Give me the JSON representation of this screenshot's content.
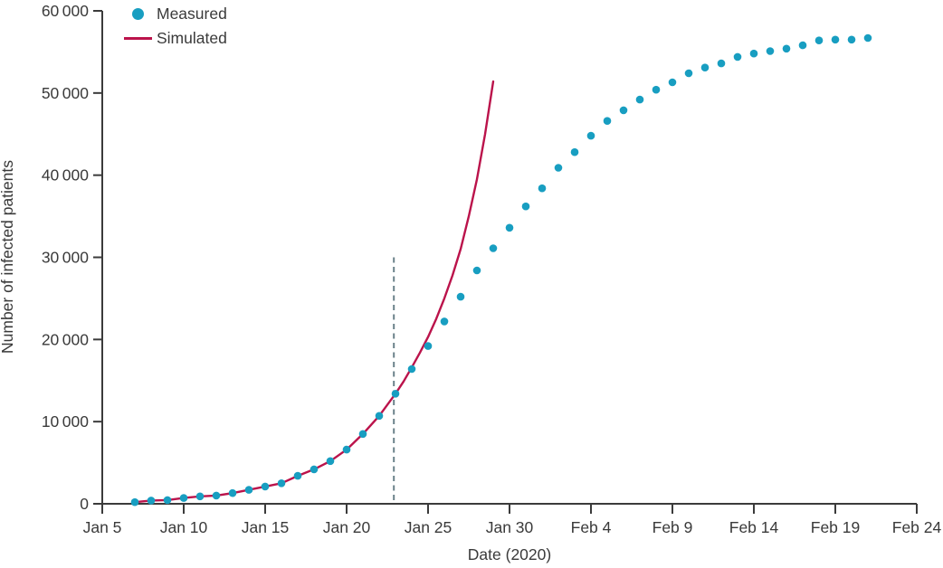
{
  "chart_data": {
    "type": "scatter",
    "title": "",
    "xlabel": "Date (2020)",
    "ylabel": "Number of infected patients",
    "ylim": [
      0,
      60000
    ],
    "x_range_days": [
      0,
      50
    ],
    "grid": false,
    "legend_position": "top-left-inside",
    "y_ticks": [
      0,
      10000,
      20000,
      30000,
      40000,
      50000,
      60000
    ],
    "y_tick_labels": [
      "0",
      "10 000",
      "20 000",
      "30 000",
      "40 000",
      "50 000",
      "60 000"
    ],
    "x_ticks": [
      {
        "day": 0,
        "label": "Jan 5"
      },
      {
        "day": 5,
        "label": "Jan 10"
      },
      {
        "day": 10,
        "label": "Jan 15"
      },
      {
        "day": 15,
        "label": "Jan 20"
      },
      {
        "day": 20,
        "label": "Jan 25"
      },
      {
        "day": 25,
        "label": "Jan 30"
      },
      {
        "day": 30,
        "label": "Feb 4"
      },
      {
        "day": 35,
        "label": "Feb 9"
      },
      {
        "day": 40,
        "label": "Feb 14"
      },
      {
        "day": 45,
        "label": "Feb 19"
      },
      {
        "day": 50,
        "label": "Feb 24"
      }
    ],
    "legend": [
      {
        "label": "Measured",
        "marker": "dot",
        "color": "#189ec1"
      },
      {
        "label": "Simulated",
        "marker": "line",
        "color": "#bb134b"
      }
    ],
    "vline": {
      "date": "Jan 23",
      "day": 17.9,
      "from": 0,
      "to": 30000,
      "style": "dashed",
      "color": "#6b828a"
    },
    "series": [
      {
        "name": "Measured",
        "type": "scatter",
        "color": "#189ec1",
        "marker_radius": 4.3,
        "points": [
          {
            "date": "Jan 7",
            "day": 2,
            "value": 200
          },
          {
            "date": "Jan 8",
            "day": 3,
            "value": 400
          },
          {
            "date": "Jan 9",
            "day": 4,
            "value": 450
          },
          {
            "date": "Jan 10",
            "day": 5,
            "value": 700
          },
          {
            "date": "Jan 11",
            "day": 6,
            "value": 900
          },
          {
            "date": "Jan 12",
            "day": 7,
            "value": 1000
          },
          {
            "date": "Jan 13",
            "day": 8,
            "value": 1300
          },
          {
            "date": "Jan 14",
            "day": 9,
            "value": 1700
          },
          {
            "date": "Jan 15",
            "day": 10,
            "value": 2100
          },
          {
            "date": "Jan 16",
            "day": 11,
            "value": 2500
          },
          {
            "date": "Jan 17",
            "day": 12,
            "value": 3400
          },
          {
            "date": "Jan 18",
            "day": 13,
            "value": 4200
          },
          {
            "date": "Jan 19",
            "day": 14,
            "value": 5200
          },
          {
            "date": "Jan 20",
            "day": 15,
            "value": 6600
          },
          {
            "date": "Jan 21",
            "day": 16,
            "value": 8500
          },
          {
            "date": "Jan 22",
            "day": 17,
            "value": 10700
          },
          {
            "date": "Jan 23",
            "day": 18,
            "value": 13400
          },
          {
            "date": "Jan 24",
            "day": 19,
            "value": 16400
          },
          {
            "date": "Jan 25",
            "day": 20,
            "value": 19200
          },
          {
            "date": "Jan 26",
            "day": 21,
            "value": 22200
          },
          {
            "date": "Jan 27",
            "day": 22,
            "value": 25200
          },
          {
            "date": "Jan 28",
            "day": 23,
            "value": 28400
          },
          {
            "date": "Jan 29",
            "day": 24,
            "value": 31100
          },
          {
            "date": "Jan 30",
            "day": 25,
            "value": 33600
          },
          {
            "date": "Jan 31",
            "day": 26,
            "value": 36200
          },
          {
            "date": "Feb 1",
            "day": 27,
            "value": 38400
          },
          {
            "date": "Feb 2",
            "day": 28,
            "value": 40900
          },
          {
            "date": "Feb 3",
            "day": 29,
            "value": 42800
          },
          {
            "date": "Feb 4",
            "day": 30,
            "value": 44800
          },
          {
            "date": "Feb 5",
            "day": 31,
            "value": 46600
          },
          {
            "date": "Feb 6",
            "day": 32,
            "value": 47900
          },
          {
            "date": "Feb 7",
            "day": 33,
            "value": 49200
          },
          {
            "date": "Feb 8",
            "day": 34,
            "value": 50400
          },
          {
            "date": "Feb 9",
            "day": 35,
            "value": 51300
          },
          {
            "date": "Feb 10",
            "day": 36,
            "value": 52400
          },
          {
            "date": "Feb 11",
            "day": 37,
            "value": 53100
          },
          {
            "date": "Feb 12",
            "day": 38,
            "value": 53600
          },
          {
            "date": "Feb 13",
            "day": 39,
            "value": 54400
          },
          {
            "date": "Feb 14",
            "day": 40,
            "value": 54800
          },
          {
            "date": "Feb 15",
            "day": 41,
            "value": 55100
          },
          {
            "date": "Feb 16",
            "day": 42,
            "value": 55400
          },
          {
            "date": "Feb 17",
            "day": 43,
            "value": 55800
          },
          {
            "date": "Feb 18",
            "day": 44,
            "value": 56400
          },
          {
            "date": "Feb 19",
            "day": 45,
            "value": 56500
          },
          {
            "date": "Feb 20",
            "day": 46,
            "value": 56500
          },
          {
            "date": "Feb 21",
            "day": 47,
            "value": 56700
          }
        ]
      },
      {
        "name": "Simulated",
        "type": "line",
        "color": "#bb134b",
        "points": [
          [
            2,
            200
          ],
          [
            3,
            400
          ],
          [
            4,
            450
          ],
          [
            5,
            700
          ],
          [
            6,
            900
          ],
          [
            7,
            1000
          ],
          [
            8,
            1300
          ],
          [
            9,
            1700
          ],
          [
            10,
            2100
          ],
          [
            11,
            2500
          ],
          [
            12,
            3400
          ],
          [
            13,
            4200
          ],
          [
            14,
            5200
          ],
          [
            15,
            6600
          ],
          [
            16,
            8500
          ],
          [
            17,
            10700
          ],
          [
            18,
            13400
          ],
          [
            18.5,
            14900
          ],
          [
            19,
            16600
          ],
          [
            19.5,
            18400
          ],
          [
            20,
            20300
          ],
          [
            20.5,
            22500
          ],
          [
            21,
            25000
          ],
          [
            21.5,
            27800
          ],
          [
            22,
            31000
          ],
          [
            22.5,
            35000
          ],
          [
            23,
            39500
          ],
          [
            23.5,
            45000
          ],
          [
            24,
            51400
          ]
        ]
      }
    ]
  }
}
